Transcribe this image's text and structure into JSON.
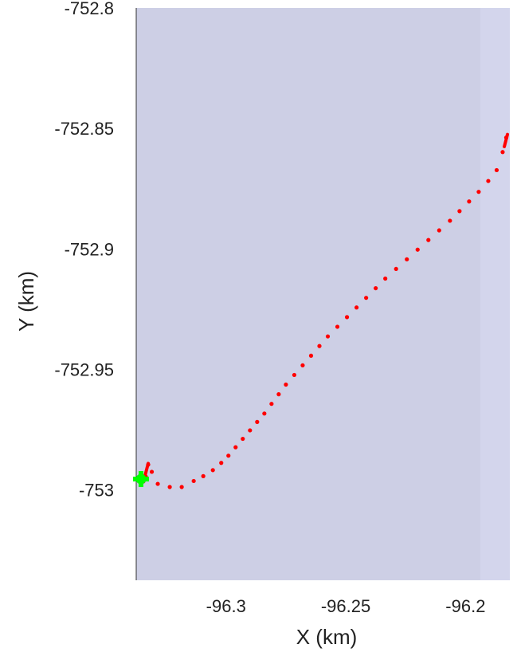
{
  "chart_data": {
    "type": "scatter",
    "title": "",
    "xlabel": "X (km)",
    "ylabel": "Y (km)",
    "xlim": [
      -96.3375,
      -96.1815
    ],
    "ylim": [
      -753.0375,
      -752.8
    ],
    "x_ticks": [
      -96.3,
      -96.25,
      -96.2
    ],
    "y_ticks": [
      -752.8,
      -752.85,
      -752.9,
      -752.95,
      -753
    ],
    "x_tick_labels": [
      "-96.3",
      "-96.25",
      "-96.2"
    ],
    "y_tick_labels": [
      "-752.8",
      "-752.85",
      "-752.9",
      "-752.95",
      "-753"
    ],
    "grid": false,
    "colors": {
      "background": "#cdcfe5",
      "right_band": "#d3d5ec",
      "trajectory": "#ff0000",
      "start_marker": "#00ff00",
      "axis_line": "#333333"
    },
    "series": [
      {
        "marker": "dot",
        "color": "#ff0000",
        "x": [
          -96.3345,
          -96.3335,
          -96.3325,
          -96.331,
          -96.3285,
          -96.3235,
          -96.3185,
          -96.3135,
          -96.3095,
          -96.3055,
          -96.302,
          -96.299,
          -96.296,
          -96.293,
          -96.29,
          -96.287,
          -96.284,
          -96.281,
          -96.278,
          -96.275,
          -96.2715,
          -96.268,
          -96.2645,
          -96.261,
          -96.2575,
          -96.2535,
          -96.2495,
          -96.2455,
          -96.2415,
          -96.2375,
          -96.2335,
          -96.229,
          -96.2245,
          -96.22,
          -96.2155,
          -96.211,
          -96.2065,
          -96.2025,
          -96.1985,
          -96.1945,
          -96.1905,
          -96.187,
          -96.1845,
          -96.183
        ],
        "y": [
          -752.9965,
          -752.9945,
          -752.9895,
          -752.9925,
          -752.9975,
          -752.9988,
          -752.9988,
          -752.9963,
          -752.9943,
          -752.9918,
          -752.9888,
          -752.9858,
          -752.9823,
          -752.9788,
          -752.9753,
          -752.9718,
          -752.9683,
          -752.9643,
          -752.9603,
          -752.9563,
          -752.9523,
          -752.9483,
          -752.9443,
          -752.9403,
          -752.9363,
          -752.9323,
          -752.9283,
          -752.9243,
          -752.9203,
          -752.9163,
          -752.9123,
          -752.9083,
          -752.9043,
          -752.9003,
          -752.8963,
          -752.8923,
          -752.8883,
          -752.8843,
          -752.8803,
          -752.8763,
          -752.8718,
          -752.8673,
          -752.8598,
          -752.8538
        ]
      },
      {
        "marker": "segment",
        "color": "#ff0000",
        "x": [
          -96.334,
          -96.3325
        ],
        "y": [
          -752.9948,
          -752.989
        ]
      },
      {
        "marker": "segment",
        "color": "#ff0000",
        "x": [
          -96.1838,
          -96.1825
        ],
        "y": [
          -752.8575,
          -752.8525
        ]
      },
      {
        "marker": "cross",
        "color": "#00ff00",
        "x": [
          -96.3355
        ],
        "y": [
          -752.9955
        ]
      }
    ]
  }
}
